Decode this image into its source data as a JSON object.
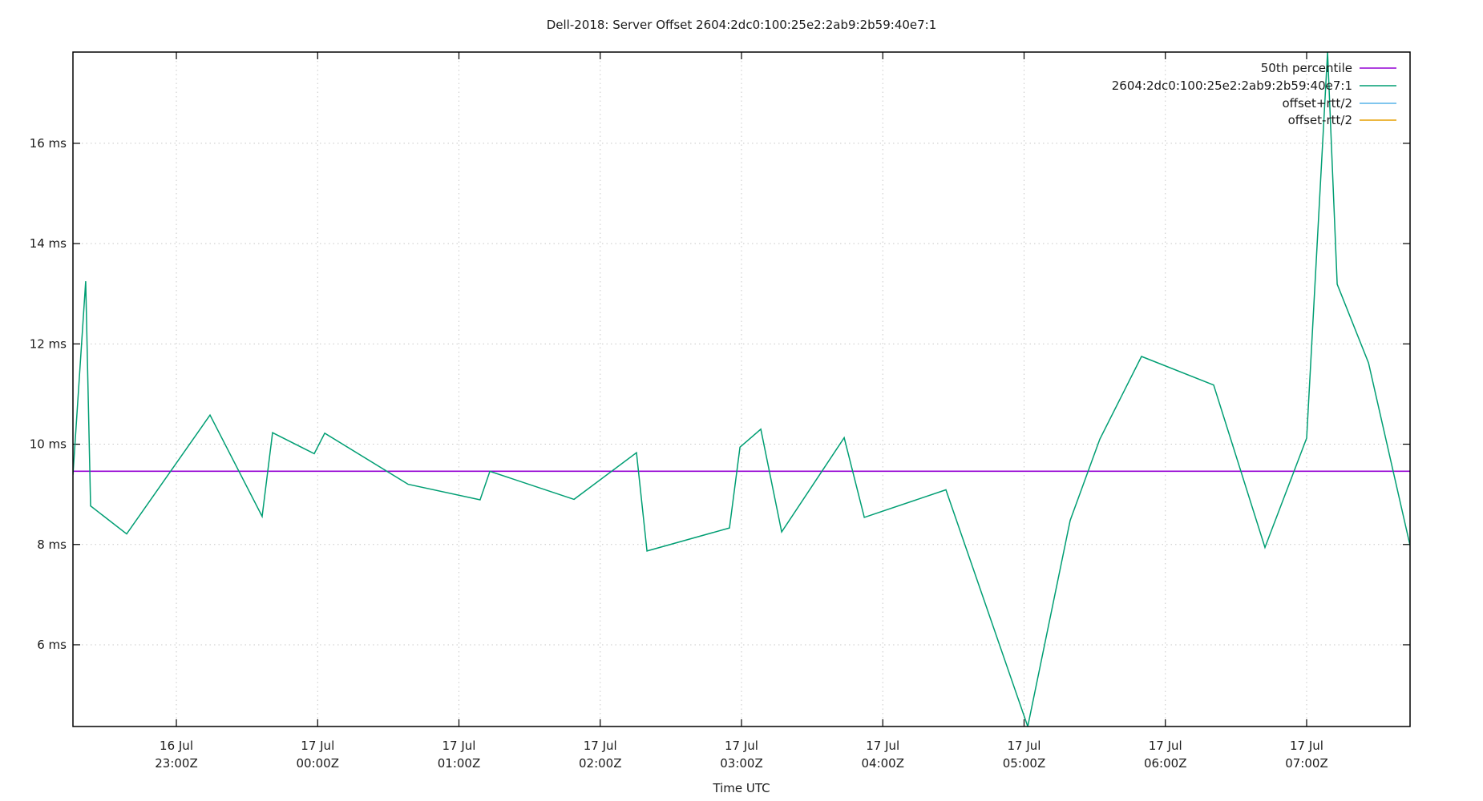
{
  "chart_data": {
    "type": "line",
    "title": "Dell-2018: Server Offset 2604:2dc0:100:25e2:2ab9:2b59:40e7:1",
    "xlabel": "Time UTC",
    "ylabel": "",
    "grid": true,
    "legend_position": "top-right inside",
    "ylim": [
      4.37,
      17.82
    ],
    "xlim": [
      "16 Jul 22:16Z",
      "17 Jul 07:44Z"
    ],
    "y_ticks": [
      {
        "value": 6,
        "label": "6 ms"
      },
      {
        "value": 8,
        "label": "8 ms"
      },
      {
        "value": 10,
        "label": "10 ms"
      },
      {
        "value": 12,
        "label": "12 ms"
      },
      {
        "value": 14,
        "label": "14 ms"
      },
      {
        "value": 16,
        "label": "16 ms"
      }
    ],
    "x_ticks": [
      {
        "hours": 23,
        "date": "16 Jul",
        "time": "23:00Z"
      },
      {
        "hours": 24,
        "date": "17 Jul",
        "time": "00:00Z"
      },
      {
        "hours": 25,
        "date": "17 Jul",
        "time": "01:00Z"
      },
      {
        "hours": 26,
        "date": "17 Jul",
        "time": "02:00Z"
      },
      {
        "hours": 27,
        "date": "17 Jul",
        "time": "03:00Z"
      },
      {
        "hours": 28,
        "date": "17 Jul",
        "time": "04:00Z"
      },
      {
        "hours": 29,
        "date": "17 Jul",
        "time": "05:00Z"
      },
      {
        "hours": 30,
        "date": "17 Jul",
        "time": "06:00Z"
      },
      {
        "hours": 31,
        "date": "17 Jul",
        "time": "07:00Z"
      }
    ],
    "x_range_hours": [
      22.268,
      31.732
    ],
    "series": [
      {
        "name": "50th percentile",
        "color": "#9400D3",
        "type": "hline",
        "value": 9.46
      },
      {
        "name": "2604:2dc0:100:25e2:2ab9:2b59:40e7:1",
        "color": "#009E73",
        "x_hours": [
          22.268,
          22.358,
          22.393,
          22.648,
          23.238,
          23.607,
          23.681,
          23.976,
          24.05,
          24.64,
          25.15,
          25.219,
          25.815,
          26.257,
          26.331,
          26.915,
          26.989,
          27.137,
          27.284,
          27.727,
          27.869,
          28.447,
          29.026,
          29.326,
          29.536,
          29.831,
          30.342,
          30.705,
          31.0,
          31.148,
          31.216,
          31.438,
          31.732
        ],
        "values": [
          9.39,
          13.25,
          8.77,
          8.21,
          10.58,
          8.56,
          10.23,
          9.81,
          10.22,
          9.2,
          8.89,
          9.46,
          8.9,
          9.83,
          7.87,
          8.33,
          9.94,
          10.3,
          8.25,
          10.13,
          8.54,
          9.09,
          4.37,
          8.48,
          10.1,
          11.75,
          11.18,
          7.94,
          10.12,
          17.82,
          13.19,
          11.62,
          7.98
        ]
      },
      {
        "name": "offset+rtt/2",
        "color": "#56B4E9",
        "values": []
      },
      {
        "name": "offset-rtt/2",
        "color": "#E69F00",
        "values": []
      }
    ]
  }
}
